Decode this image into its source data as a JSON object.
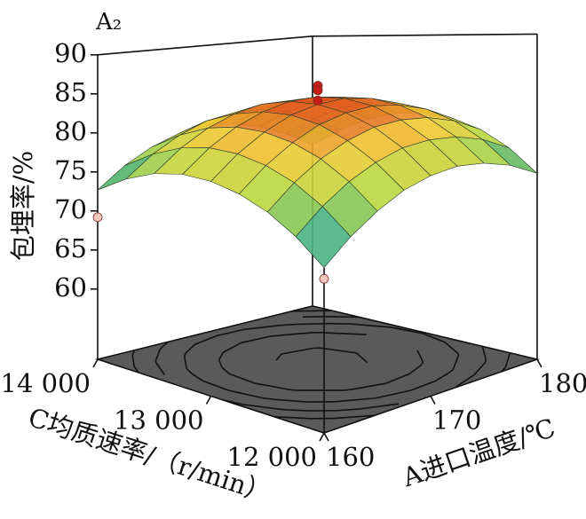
{
  "chart_data": {
    "type": "surface",
    "title": "A₂",
    "xlabel": "A进口温度/℃",
    "ylabel": "C均质速率/（r/min）",
    "zlabel": "包埋率/%",
    "x": [
      160,
      162.5,
      165,
      167.5,
      170,
      172.5,
      175,
      177.5,
      180
    ],
    "y": [
      12000,
      12250,
      12500,
      12750,
      13000,
      13250,
      13500,
      13750,
      14000
    ],
    "z": [
      [
        71.7,
        74.3,
        76.2,
        77.5,
        78.0,
        77.9,
        77.0,
        75.5,
        73.3
      ],
      [
        74.5,
        77.1,
        79.0,
        80.2,
        80.8,
        80.6,
        79.8,
        78.3,
        76.1
      ],
      [
        76.5,
        79.1,
        81.0,
        82.2,
        82.8,
        82.6,
        81.8,
        80.3,
        78.1
      ],
      [
        77.7,
        80.3,
        82.2,
        83.5,
        84.0,
        83.9,
        83.0,
        81.5,
        79.3
      ],
      [
        78.2,
        80.8,
        82.7,
        84.0,
        84.5,
        84.4,
        83.5,
        82.0,
        79.8
      ],
      [
        78.0,
        80.6,
        82.5,
        83.7,
        84.3,
        84.1,
        83.3,
        81.8,
        79.6
      ],
      [
        77.0,
        79.6,
        81.5,
        82.7,
        83.3,
        83.1,
        82.3,
        80.8,
        78.6
      ],
      [
        75.2,
        77.8,
        79.7,
        81.0,
        81.5,
        81.4,
        80.5,
        79.0,
        76.8
      ],
      [
        72.7,
        75.3,
        77.2,
        78.5,
        79.0,
        78.9,
        78.0,
        76.5,
        74.3
      ]
    ],
    "xlim": [
      160,
      180
    ],
    "xticks": [
      160,
      170,
      180
    ],
    "ylim": [
      12000,
      14000
    ],
    "yticks": [
      {
        "value": 12000,
        "label": "12 000"
      },
      {
        "value": 13000,
        "label": "13 000"
      },
      {
        "value": 14000,
        "label": "14 000"
      }
    ],
    "zlim": [
      51,
      90
    ],
    "zticks": [
      60,
      65,
      70,
      75,
      80,
      85,
      90
    ],
    "colormap": [
      "#56c4e8",
      "#48b070",
      "#b8d840",
      "#f0c830",
      "#e04a1c"
    ],
    "contour_levels": [
      76,
      78,
      80,
      82,
      84
    ],
    "contour_colors": [
      "#1e8a3c",
      "#3aa83a",
      "#86c82e",
      "#d8d020",
      "#f0b020"
    ],
    "floor_color": "#5a5a5a",
    "points": [
      {
        "x": 170,
        "y": 13000,
        "z": 86.9,
        "color": "#c41e16"
      },
      {
        "x": 170,
        "y": 13000,
        "z": 86.3,
        "color": "#c41e16"
      },
      {
        "x": 170,
        "y": 13000,
        "z": 85.0,
        "color": "#c41e16"
      },
      {
        "x": 160,
        "y": 14000,
        "z": 69.2,
        "color": "#f2c6bc"
      },
      {
        "x": 160,
        "y": 12000,
        "z": 70.3,
        "color": "#f2c6bc"
      }
    ]
  }
}
